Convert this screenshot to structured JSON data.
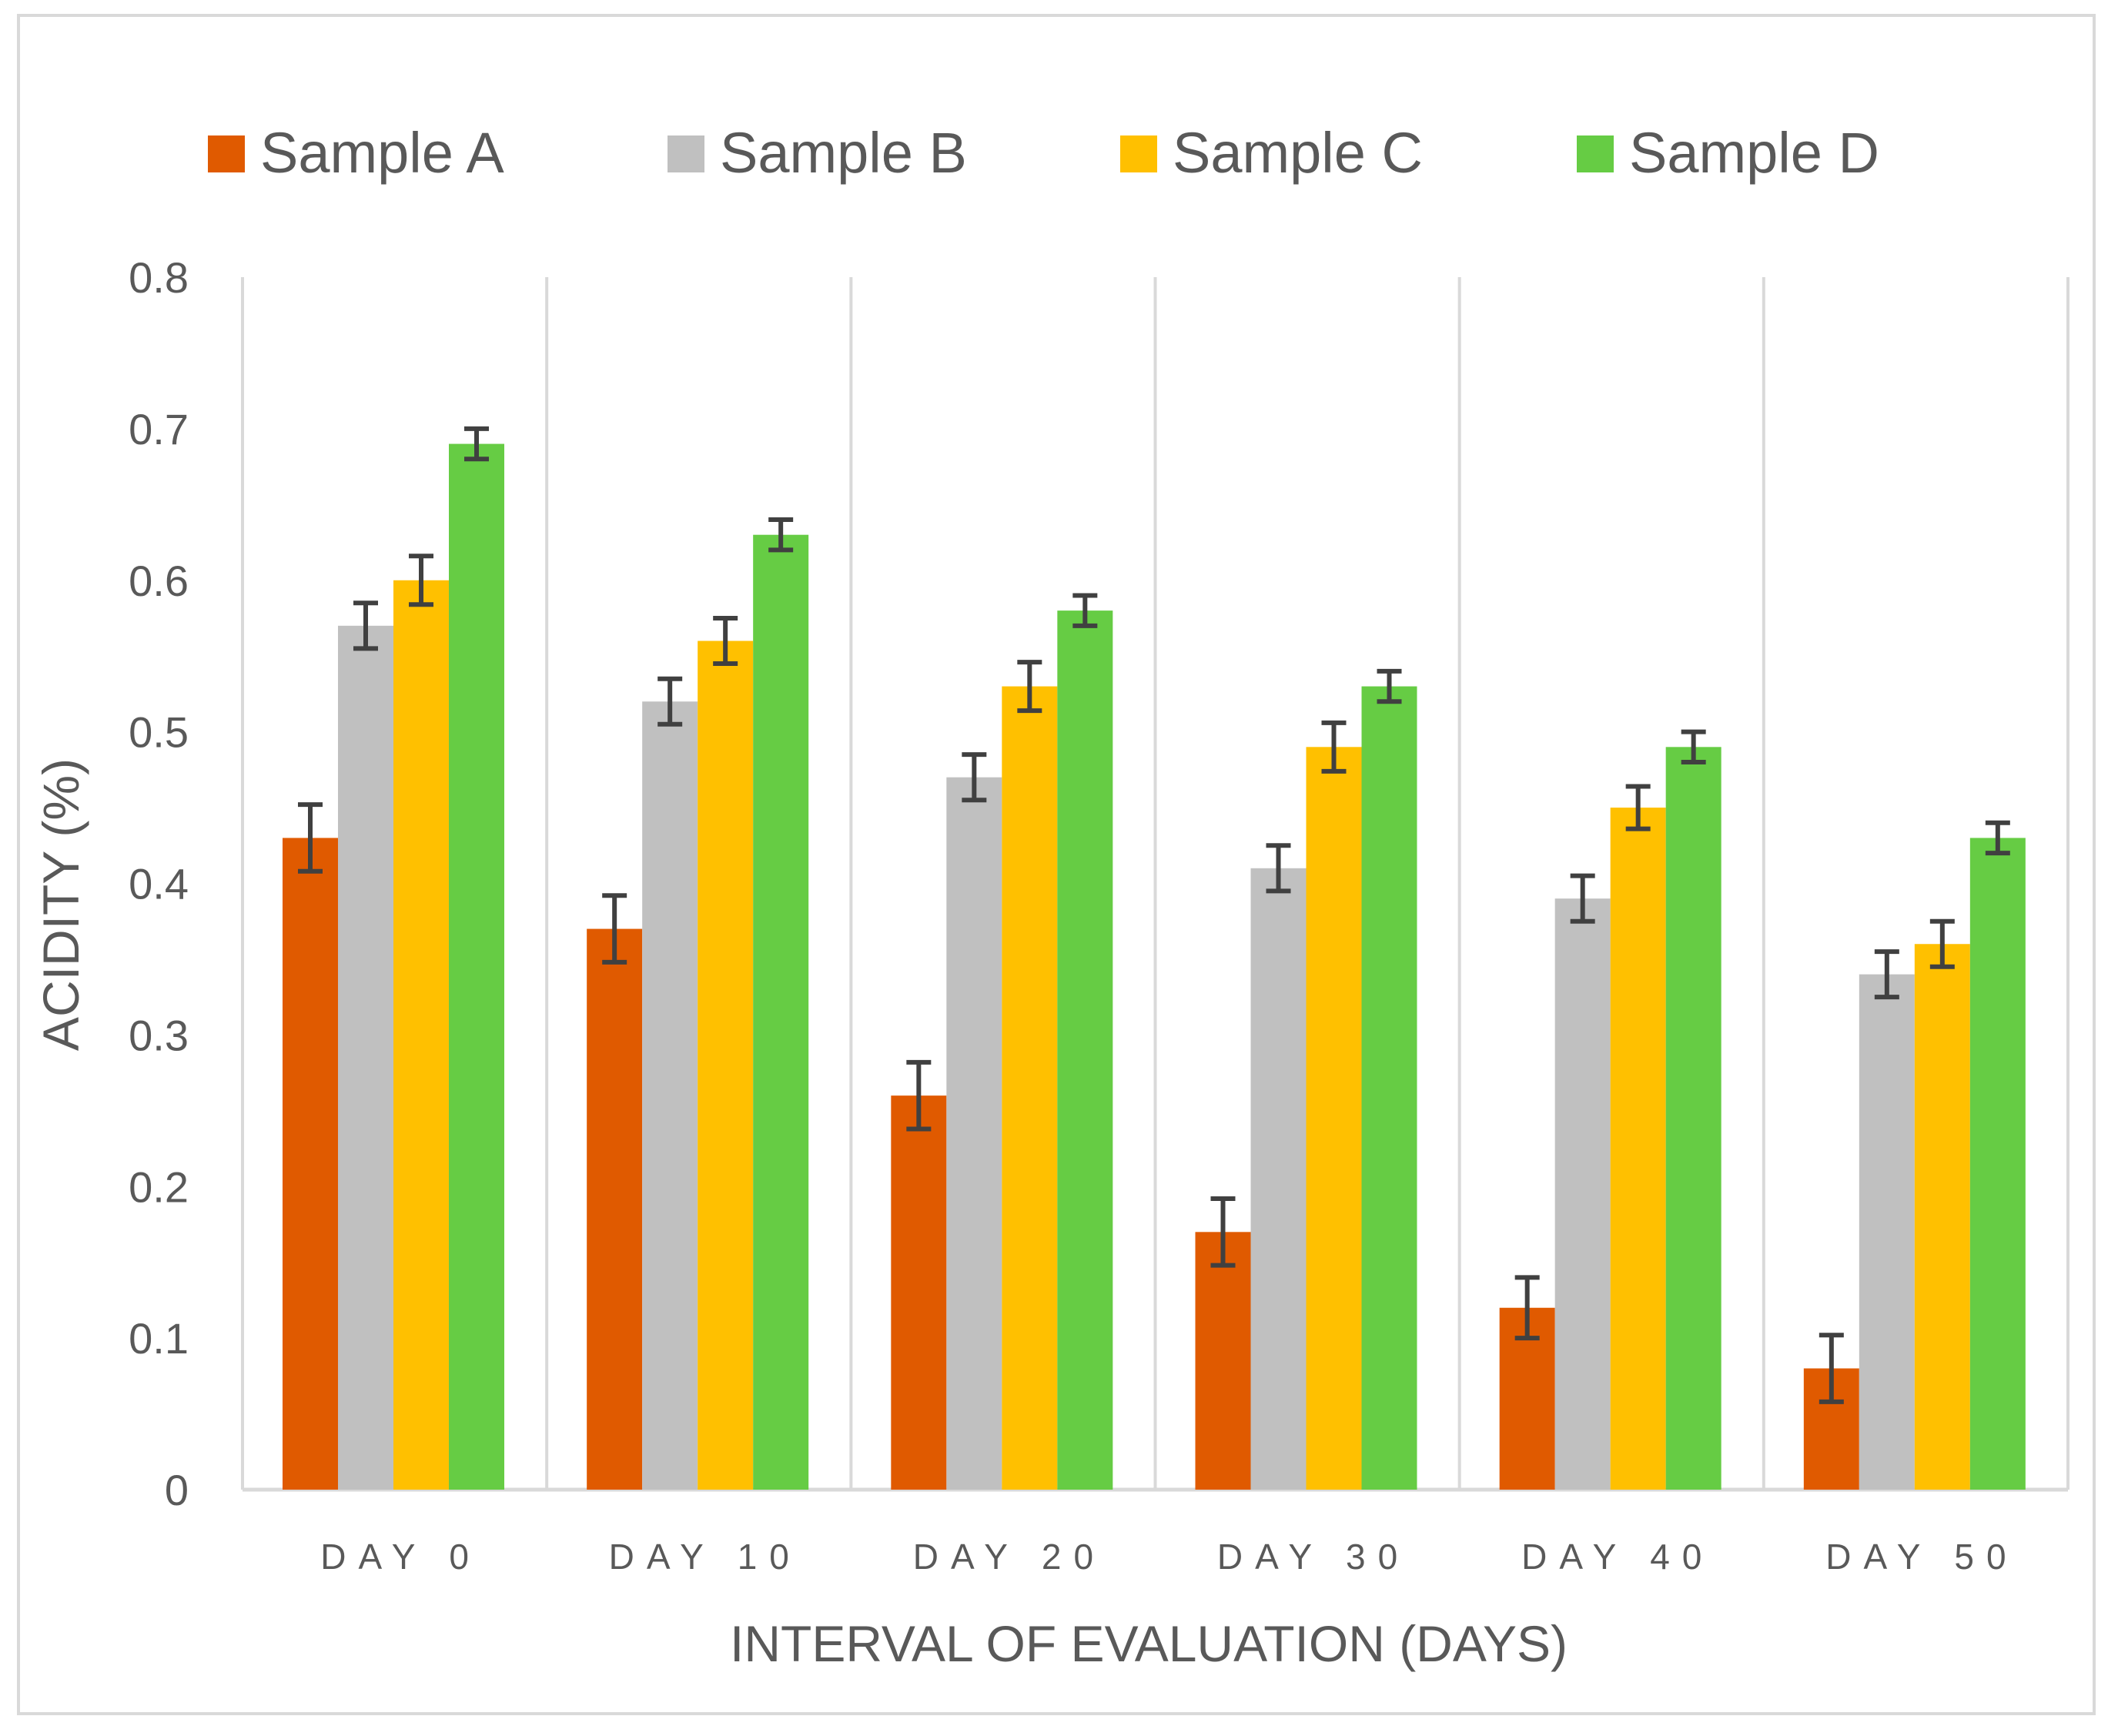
{
  "chart_data": {
    "type": "bar",
    "title": "",
    "xlabel": "INTERVAL OF EVALUATION (DAYS)",
    "ylabel": "ACIDITY (%)",
    "ylim": [
      0,
      0.8
    ],
    "yticks": [
      "0",
      "0.1",
      "0.2",
      "0.3",
      "0.4",
      "0.5",
      "0.6",
      "0.7",
      "0.8"
    ],
    "grid": "vertical category separators",
    "legend": "top",
    "categories": [
      "DAY 0",
      "DAY 10",
      "DAY 20",
      "DAY 30",
      "DAY 40",
      "DAY 50"
    ],
    "series": [
      {
        "name": "Sample A",
        "color": "#e05a00",
        "values": [
          0.43,
          0.37,
          0.26,
          0.17,
          0.12,
          0.08
        ],
        "errors": [
          0.022,
          0.022,
          0.022,
          0.022,
          0.02,
          0.022
        ]
      },
      {
        "name": "Sample B",
        "color": "#c0c0c0",
        "values": [
          0.57,
          0.52,
          0.47,
          0.41,
          0.39,
          0.34
        ],
        "errors": [
          0.015,
          0.015,
          0.015,
          0.015,
          0.015,
          0.015
        ]
      },
      {
        "name": "Sample C",
        "color": "#ffc000",
        "values": [
          0.6,
          0.56,
          0.53,
          0.49,
          0.45,
          0.36
        ],
        "errors": [
          0.016,
          0.015,
          0.016,
          0.016,
          0.014,
          0.015
        ]
      },
      {
        "name": "Sample D",
        "color": "#66cc44",
        "values": [
          0.69,
          0.63,
          0.58,
          0.53,
          0.49,
          0.43
        ],
        "errors": [
          0.01,
          0.01,
          0.01,
          0.01,
          0.01,
          0.01
        ]
      }
    ],
    "error_bar_color": "#404040",
    "axis_color": "#d9d9d9"
  }
}
